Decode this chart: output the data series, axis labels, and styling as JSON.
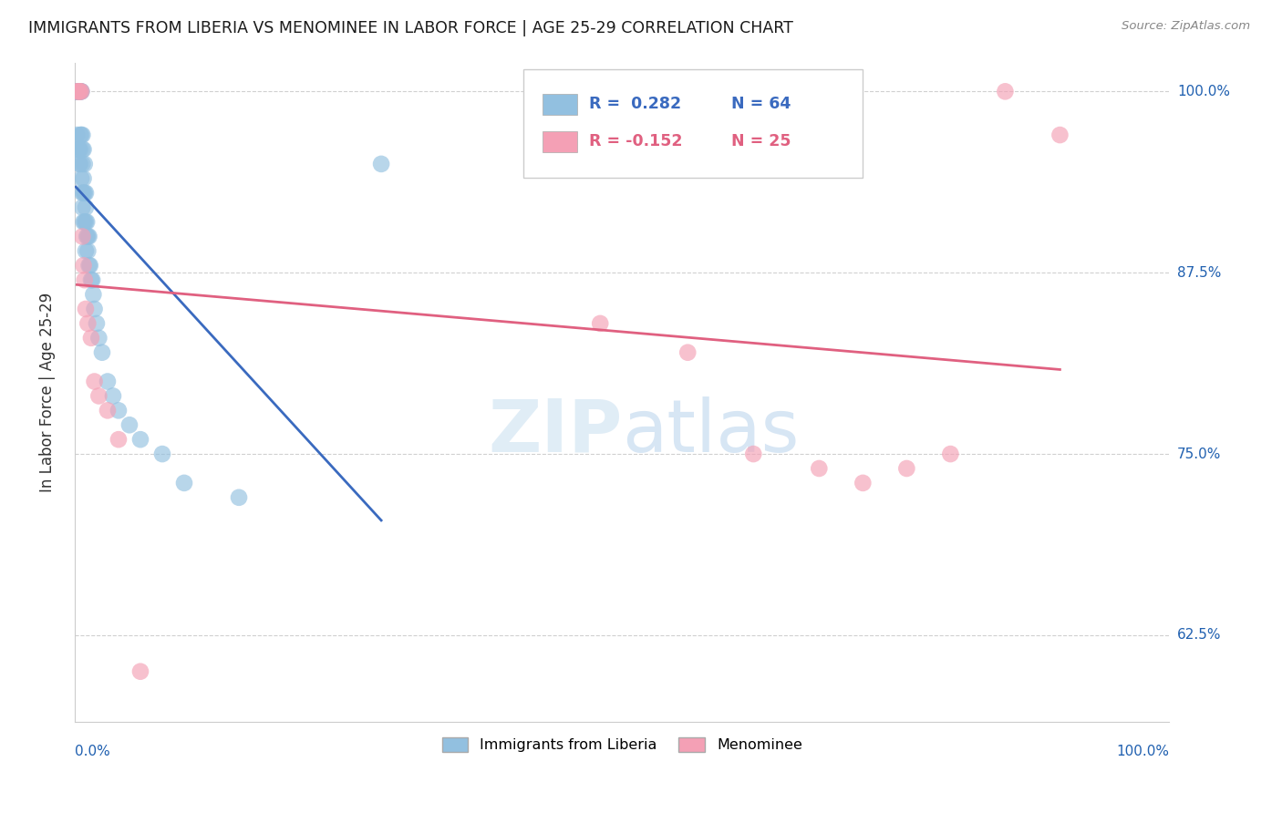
{
  "title": "IMMIGRANTS FROM LIBERIA VS MENOMINEE IN LABOR FORCE | AGE 25-29 CORRELATION CHART",
  "source": "Source: ZipAtlas.com",
  "legend_label_blue": "Immigrants from Liberia",
  "legend_label_pink": "Menominee",
  "color_blue": "#92c0e0",
  "color_pink": "#f4a0b5",
  "color_blue_line": "#3a6abf",
  "color_pink_line": "#e06080",
  "color_title": "#1a1a1a",
  "color_grid": "#d0d0d0",
  "color_axis_labels": "#2060b0",
  "watermark_color": "#daeaf5",
  "blue_x": [
    0.001,
    0.001,
    0.002,
    0.002,
    0.002,
    0.002,
    0.003,
    0.003,
    0.003,
    0.003,
    0.003,
    0.004,
    0.004,
    0.004,
    0.004,
    0.004,
    0.005,
    0.005,
    0.005,
    0.005,
    0.005,
    0.006,
    0.006,
    0.006,
    0.006,
    0.007,
    0.007,
    0.007,
    0.007,
    0.007,
    0.008,
    0.008,
    0.008,
    0.008,
    0.009,
    0.009,
    0.009,
    0.01,
    0.01,
    0.01,
    0.01,
    0.011,
    0.011,
    0.012,
    0.012,
    0.013,
    0.013,
    0.014,
    0.015,
    0.016,
    0.017,
    0.018,
    0.02,
    0.022,
    0.025,
    0.03,
    0.035,
    0.04,
    0.05,
    0.06,
    0.08,
    0.1,
    0.15,
    0.28
  ],
  "blue_y": [
    1.0,
    1.0,
    1.0,
    1.0,
    1.0,
    0.97,
    1.0,
    1.0,
    1.0,
    1.0,
    0.96,
    1.0,
    1.0,
    1.0,
    0.96,
    0.95,
    1.0,
    1.0,
    0.97,
    0.96,
    0.95,
    1.0,
    1.0,
    0.97,
    0.94,
    0.97,
    0.96,
    0.95,
    0.93,
    0.92,
    0.96,
    0.94,
    0.93,
    0.91,
    0.95,
    0.93,
    0.91,
    0.93,
    0.92,
    0.91,
    0.89,
    0.91,
    0.9,
    0.9,
    0.89,
    0.9,
    0.88,
    0.88,
    0.87,
    0.87,
    0.86,
    0.85,
    0.84,
    0.83,
    0.82,
    0.8,
    0.79,
    0.78,
    0.77,
    0.76,
    0.75,
    0.73,
    0.72,
    0.95
  ],
  "pink_x": [
    0.002,
    0.003,
    0.004,
    0.005,
    0.006,
    0.007,
    0.008,
    0.009,
    0.01,
    0.012,
    0.015,
    0.018,
    0.022,
    0.03,
    0.04,
    0.06,
    0.48,
    0.56,
    0.62,
    0.68,
    0.72,
    0.76,
    0.8,
    0.85,
    0.9
  ],
  "pink_y": [
    1.0,
    1.0,
    1.0,
    1.0,
    1.0,
    0.9,
    0.88,
    0.87,
    0.85,
    0.84,
    0.83,
    0.8,
    0.79,
    0.78,
    0.76,
    0.6,
    0.84,
    0.82,
    0.75,
    0.74,
    0.73,
    0.74,
    0.75,
    1.0,
    0.97
  ],
  "xlim": [
    0.0,
    1.0
  ],
  "ylim": [
    0.565,
    1.02
  ],
  "y_tick_vals": [
    0.625,
    0.75,
    0.875,
    1.0
  ],
  "y_tick_labels": [
    "62.5%",
    "75.0%",
    "87.5%",
    "100.0%"
  ]
}
